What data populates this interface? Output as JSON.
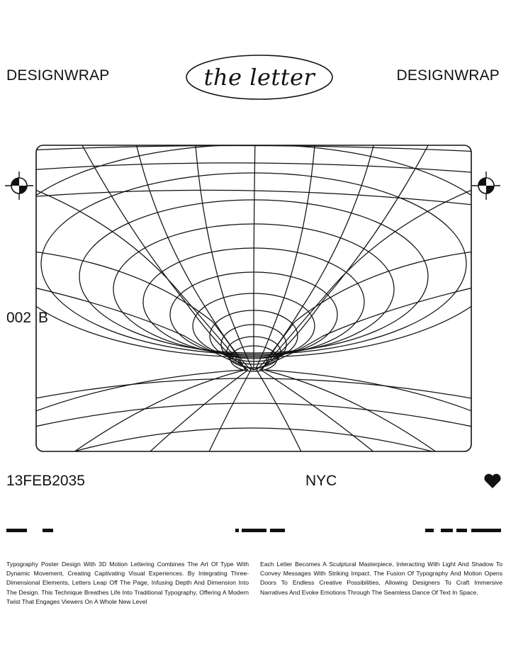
{
  "header": {
    "brand_left": "DESIGNWRAP",
    "brand_right": "DESIGNWRAP",
    "logo_text": "the letter"
  },
  "side": {
    "number": "002",
    "letter": "B"
  },
  "footer": {
    "date": "13FEB2035",
    "city": "NYC",
    "heart_icon": "heart-icon"
  },
  "description": {
    "left": "Typography Poster Design With 3D Motion Lettering Combines The Art Of Type With Dynamic Movement, Creating Captivating Visual Experiences. By Integrating Three-Dimensional Elements, Letters Leap Off The Page, Infusing Depth And Dimension Into The Design. This Technique Breathes Life Into Traditional Typography, Offering A Modern Twist That Engages Viewers On A Whole New Level",
    "right": "Each Letter Becomes A Sculptural Masterpiece, Interacting With Light And Shadow To Convey Messages With Striking Impact. The Fusion Of Typography And Motion Opens Doors To Endless Creative Possibilities, Allowing Designers To Craft Immersive Narratives And Evoke Emotions Through The Seamless Dance Of Text In Space."
  },
  "colors": {
    "ink": "#111111",
    "background": "#ffffff"
  }
}
